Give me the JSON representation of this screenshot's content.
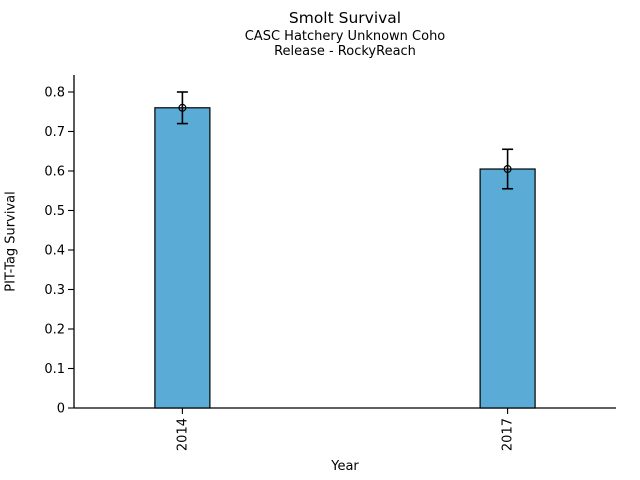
{
  "chart_data": {
    "type": "bar",
    "title": "Smolt Survival",
    "subtitle": [
      "CASC Hatchery Unknown Coho",
      "Release - RockyReach"
    ],
    "xlabel": "Year",
    "ylabel": "PIT-Tag Survival",
    "categories": [
      "2014",
      "2017"
    ],
    "series": [
      {
        "name": "PIT-Tag Survival",
        "values": [
          0.76,
          0.605
        ],
        "error_low": [
          0.72,
          0.555
        ],
        "error_high": [
          0.8,
          0.655
        ]
      }
    ],
    "yticks": [
      0,
      0.1,
      0.2,
      0.3,
      0.4,
      0.5,
      0.6,
      0.7,
      0.8
    ],
    "ytick_labels": [
      "0",
      "0.1",
      "0.2",
      "0.3",
      "0.4",
      "0.5",
      "0.6",
      "0.7",
      "0.8"
    ],
    "ylim": [
      0,
      0.843
    ],
    "grid": false,
    "legend": "none",
    "marker": "open-circle",
    "colors": {
      "bar_fill": "#5AACD6",
      "bar_edge": "#000000",
      "error": "#000000",
      "axis": "#000000",
      "text": "#000000",
      "background": "#FFFFFF"
    }
  }
}
